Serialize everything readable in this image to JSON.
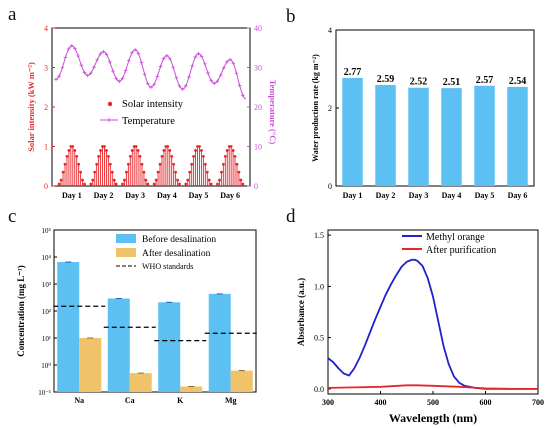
{
  "colors": {
    "solar": "#e8262a",
    "temperature": "#c94fd8",
    "bar_blue": "#5cc0f2",
    "bar_orange": "#f0c36b",
    "methyl": "#1f22c9",
    "purified": "#e8262a",
    "axis": "#000000"
  },
  "chart_data": [
    {
      "panel": "a",
      "type": "line",
      "categories": [
        "Day 1",
        "Day 2",
        "Day 3",
        "Day 4",
        "Day 5",
        "Day 6"
      ],
      "ylabel": "Solar intensity (kW m⁻²)",
      "ylabel_right": "Temperature (°C)",
      "ylim": [
        0,
        4
      ],
      "ylim_right": [
        0,
        40
      ],
      "yticks": [
        "0",
        "1",
        "2",
        "3",
        "4"
      ],
      "yticks_right": [
        "0",
        "10",
        "20",
        "30",
        "40"
      ],
      "legend": [
        "Solar intensity",
        "Temperature"
      ],
      "series": [
        {
          "name": "Solar intensity",
          "style": "stem",
          "per_day": [
            0.05,
            0.15,
            0.35,
            0.55,
            0.75,
            0.9,
            1.0,
            1.0,
            0.9,
            0.75,
            0.55,
            0.35,
            0.15,
            0.05
          ]
        },
        {
          "name": "Temperature",
          "style": "line",
          "axis": "right",
          "x": [
            0.0,
            0.5,
            1.0,
            1.5,
            2.0,
            2.5,
            3.0,
            3.5,
            4.0,
            4.5,
            5.0,
            5.5,
            6.0
          ],
          "values": [
            27,
            35.5,
            28,
            34,
            26.5,
            34.5,
            25,
            33,
            24.5,
            33.5,
            26,
            32,
            22
          ]
        }
      ]
    },
    {
      "panel": "b",
      "type": "bar",
      "categories": [
        "Day 1",
        "Day 2",
        "Day 3",
        "Day 4",
        "Day 5",
        "Day 6"
      ],
      "values": [
        2.77,
        2.59,
        2.52,
        2.51,
        2.57,
        2.54
      ],
      "value_labels": [
        "2.77",
        "2.59",
        "2.52",
        "2.51",
        "2.57",
        "2.54"
      ],
      "ylabel": "Water production rate (kg m⁻²)",
      "ylim": [
        0,
        4
      ],
      "yticks": [
        "0",
        "2",
        "4"
      ]
    },
    {
      "panel": "c",
      "type": "bar",
      "scale": "log",
      "categories": [
        "Na",
        "Ca",
        "K",
        "Mg"
      ],
      "ylabel": "Concentration (mg L⁻¹)",
      "ylim": [
        0.1,
        100000
      ],
      "yticks": [
        "10⁻¹",
        "10⁰",
        "10¹",
        "10²",
        "10³",
        "10⁴",
        "10⁵"
      ],
      "legend": [
        "Before desalination",
        "After desalination",
        "WHO standards"
      ],
      "series": [
        {
          "name": "Before desalination",
          "values": [
            6500,
            290,
            210,
            430
          ]
        },
        {
          "name": "After desalination",
          "values": [
            10,
            0.5,
            0.16,
            0.62
          ]
        },
        {
          "name": "WHO standards",
          "values": [
            150,
            25,
            8,
            15
          ]
        }
      ]
    },
    {
      "panel": "d",
      "type": "line",
      "xlabel": "Wavelength (nm)",
      "ylabel": "Absorbance (a.u.)",
      "xlim": [
        300,
        700
      ],
      "ylim": [
        -0.05,
        1.55
      ],
      "xticks": [
        "300",
        "400",
        "500",
        "600",
        "700"
      ],
      "yticks": [
        "0.0",
        "0.5",
        "1.0",
        "1.5"
      ],
      "legend": [
        "Methyl orange",
        "After purification"
      ],
      "series": [
        {
          "name": "Methyl orange",
          "x": [
            300,
            310,
            320,
            330,
            340,
            350,
            360,
            370,
            380,
            390,
            400,
            410,
            420,
            430,
            440,
            450,
            460,
            465,
            470,
            480,
            490,
            500,
            510,
            520,
            530,
            540,
            550,
            560,
            570,
            580,
            600,
            650,
            700
          ],
          "values": [
            0.3,
            0.26,
            0.2,
            0.15,
            0.13,
            0.2,
            0.3,
            0.42,
            0.55,
            0.68,
            0.8,
            0.92,
            1.02,
            1.11,
            1.19,
            1.24,
            1.26,
            1.26,
            1.25,
            1.2,
            1.08,
            0.9,
            0.66,
            0.42,
            0.24,
            0.12,
            0.06,
            0.03,
            0.02,
            0.01,
            0.0,
            0.0,
            0.0
          ]
        },
        {
          "name": "After purification",
          "x": [
            300,
            350,
            400,
            450,
            470,
            500,
            550,
            600,
            650,
            700
          ],
          "values": [
            0.01,
            0.015,
            0.02,
            0.035,
            0.035,
            0.03,
            0.02,
            0.005,
            0.0,
            0.0
          ]
        }
      ]
    }
  ],
  "panel_labels": [
    "a",
    "b",
    "c",
    "d"
  ]
}
